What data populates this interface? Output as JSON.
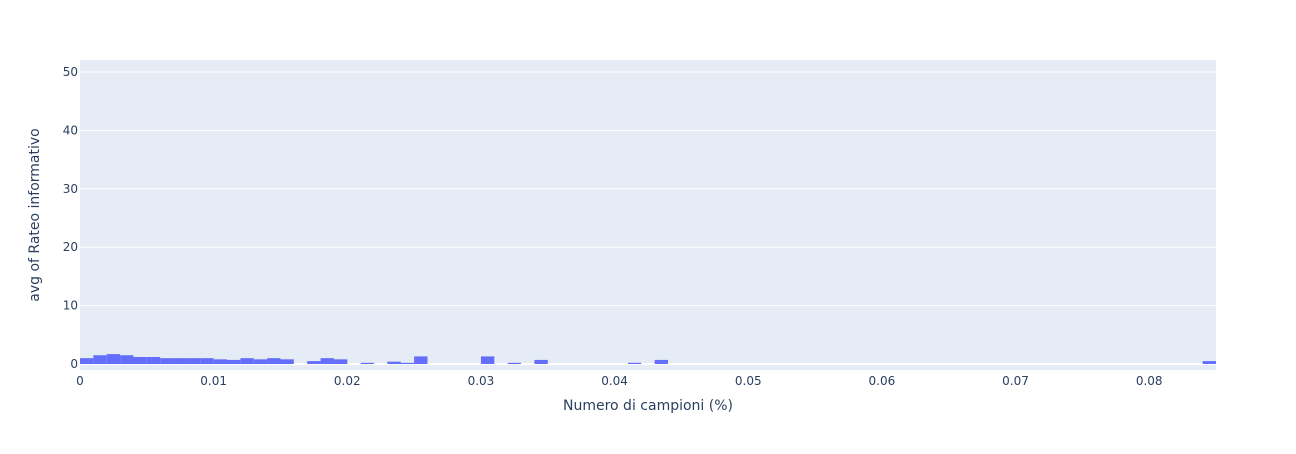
{
  "chart_data": {
    "type": "bar",
    "subtype": "histogram",
    "xlabel": "Numero di campioni (%)",
    "ylabel": "avg of Rateo informativo",
    "xlim": [
      0,
      0.085
    ],
    "ylim": [
      0,
      52
    ],
    "bin_width": 0.001,
    "x_ticks": [
      0,
      0.01,
      0.02,
      0.03,
      0.04,
      0.05,
      0.06,
      0.07,
      0.08
    ],
    "x_tick_labels": [
      "0",
      "0.01",
      "0.02",
      "0.03",
      "0.04",
      "0.05",
      "0.06",
      "0.07",
      "0.08"
    ],
    "y_ticks": [
      0,
      10,
      20,
      30,
      40,
      50
    ],
    "y_tick_labels": [
      "0",
      "10",
      "20",
      "30",
      "40",
      "50"
    ],
    "grid": true,
    "bar_color": "#636efa",
    "plot_background": "#e5ecf6",
    "gridline_color": "#ffffff",
    "bins": [
      {
        "x0": 0.0,
        "value": 1.0
      },
      {
        "x0": 0.001,
        "value": 1.5
      },
      {
        "x0": 0.002,
        "value": 1.7
      },
      {
        "x0": 0.003,
        "value": 1.5
      },
      {
        "x0": 0.004,
        "value": 1.2
      },
      {
        "x0": 0.005,
        "value": 1.2
      },
      {
        "x0": 0.006,
        "value": 1.0
      },
      {
        "x0": 0.007,
        "value": 1.0
      },
      {
        "x0": 0.008,
        "value": 1.0
      },
      {
        "x0": 0.009,
        "value": 1.0
      },
      {
        "x0": 0.01,
        "value": 0.8
      },
      {
        "x0": 0.011,
        "value": 0.7
      },
      {
        "x0": 0.012,
        "value": 1.0
      },
      {
        "x0": 0.013,
        "value": 0.8
      },
      {
        "x0": 0.014,
        "value": 1.0
      },
      {
        "x0": 0.015,
        "value": 0.8
      },
      {
        "x0": 0.017,
        "value": 0.5
      },
      {
        "x0": 0.018,
        "value": 1.0
      },
      {
        "x0": 0.019,
        "value": 0.8
      },
      {
        "x0": 0.021,
        "value": 0.2
      },
      {
        "x0": 0.023,
        "value": 0.4
      },
      {
        "x0": 0.024,
        "value": 0.2
      },
      {
        "x0": 0.025,
        "value": 1.3
      },
      {
        "x0": 0.03,
        "value": 1.3
      },
      {
        "x0": 0.032,
        "value": 0.2
      },
      {
        "x0": 0.034,
        "value": 0.7
      },
      {
        "x0": 0.041,
        "value": 0.2
      },
      {
        "x0": 0.043,
        "value": 0.7
      },
      {
        "x0": 0.084,
        "value": 0.5
      }
    ]
  }
}
